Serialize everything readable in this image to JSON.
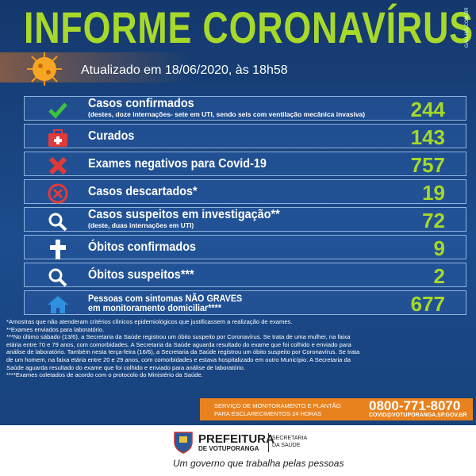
{
  "header": {
    "title": "INFORME CORONAVÍRUS",
    "site": "GALLIAS.COM.BR",
    "updated": "Atualizado em 18/06/2020, às 18h58"
  },
  "rows": [
    {
      "label": "Casos confirmados",
      "note": "(destes, doze internações- sete em UTI, sendo seis com ventilação mecânica invasiva)",
      "value": 244
    },
    {
      "label": "Curados",
      "value": 143
    },
    {
      "label": "Exames negativos para Covid-19",
      "value": 757
    },
    {
      "label": "Casos descartados*",
      "value": 19
    },
    {
      "label": "Casos suspeitos em investigação**",
      "note": "(deste, duas internações em UTI)",
      "value": 72
    },
    {
      "label": "Óbitos confirmados",
      "value": 9
    },
    {
      "label": "Óbitos suspeitos***",
      "value": 2
    },
    {
      "label": "Pessoas com sintomas NÃO GRAVES",
      "label2": "em monitoramento domiciliar****",
      "value": 677
    }
  ],
  "footnotes": [
    "*Amostras que não atenderam critérios clínicos epidemiológicos que justificassem a realização de exames.",
    "**Exames enviados para laboratório.",
    "***No último sábado (13/6), a Secretaria da Saúde registrou um óbito suspeito por Coronavírus. Se trata de uma mulher, na faixa",
    "etária entre 70 e 79 anos, com comorbidades. A Secretaria da Saúde aguarda resultado do exame que foi colhido e enviado para",
    "análise de laboratório. Também nesta terça-feira (16/6), a Secretaria da Saúde registrou um óbito suspeito por Coronavírus. Se trata",
    "de um homem, na faixa etária entre 20 e 29 anos, com comorbidades e estava hospitalizado em outro Município. A Secretaria da",
    "Saúde aguarda resultado do exame que foi colhido e enviado para análise de laboratório.",
    "****Exames coletados de acordo com o protocolo do Ministério da Saúde."
  ],
  "service": {
    "line1": "SERVIÇO DE MONITORAMENTO E PLANTÃO",
    "line2": "PARA ESCLARECIMENTOS 24 HORAS",
    "phone": "0800-771-8070",
    "email": "COVID@VOTUPORANGA.SP.GOV.BR"
  },
  "footer": {
    "org1": "PREFEITURA",
    "org2": "DE VOTUPORANGA",
    "dept1": "SECRETARIA",
    "dept2": "DA SAÚDE",
    "slogan": "Um governo que trabalha pelas pessoas"
  }
}
